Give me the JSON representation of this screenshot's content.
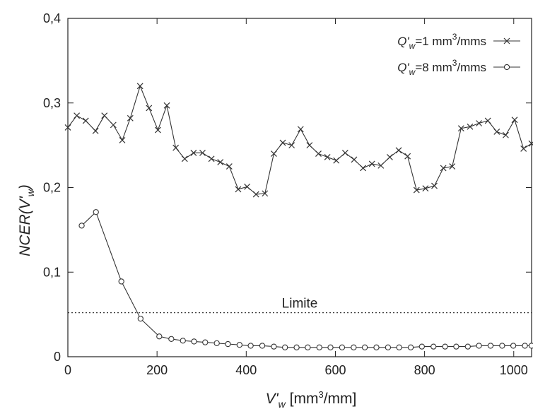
{
  "chart_data": {
    "type": "line",
    "xlabel": {
      "main": "V'",
      "sub": "w",
      "unit_pre": "  [mm",
      "unit_sup": "3",
      "unit_post": "/mm]"
    },
    "ylabel": {
      "pre": "NCER(V'",
      "sub": "w",
      "post": ")"
    },
    "xlim": [
      0,
      1040
    ],
    "ylim": [
      0,
      0.4
    ],
    "x_ticks": [
      0,
      200,
      400,
      600,
      800,
      1000
    ],
    "x_tick_labels": [
      "0",
      "200",
      "400",
      "600",
      "800",
      "1000"
    ],
    "y_ticks": [
      0,
      0.1,
      0.2,
      0.3,
      0.4
    ],
    "y_tick_labels": [
      "0",
      "0,1",
      "0,2",
      "0,3",
      "0,4"
    ],
    "grid": false,
    "legend_position": "top-right",
    "series": [
      {
        "legend": {
          "pre": "Q'",
          "sub": "w",
          "mid": "=1 mm",
          "sup": "3",
          "post": "/mms"
        },
        "marker": "x",
        "color": "#333333",
        "x": [
          0,
          20,
          40,
          62,
          82,
          102,
          122,
          140,
          162,
          182,
          202,
          222,
          242,
          262,
          282,
          302,
          322,
          342,
          362,
          382,
          402,
          422,
          442,
          462,
          482,
          502,
          522,
          542,
          562,
          582,
          602,
          622,
          642,
          662,
          682,
          702,
          722,
          742,
          762,
          782,
          802,
          822,
          842,
          862,
          882,
          902,
          922,
          942,
          962,
          982,
          1002,
          1022,
          1040
        ],
        "y": [
          0.271,
          0.285,
          0.279,
          0.267,
          0.285,
          0.274,
          0.256,
          0.282,
          0.32,
          0.294,
          0.268,
          0.297,
          0.247,
          0.234,
          0.241,
          0.241,
          0.234,
          0.23,
          0.225,
          0.198,
          0.201,
          0.192,
          0.193,
          0.24,
          0.253,
          0.25,
          0.269,
          0.25,
          0.24,
          0.236,
          0.232,
          0.241,
          0.233,
          0.223,
          0.228,
          0.226,
          0.236,
          0.244,
          0.237,
          0.197,
          0.199,
          0.202,
          0.223,
          0.225,
          0.27,
          0.272,
          0.276,
          0.279,
          0.266,
          0.262,
          0.28,
          0.246,
          0.252
        ]
      },
      {
        "legend": {
          "pre": "Q'",
          "sub": "w",
          "mid": "=8 mm",
          "sup": "3",
          "post": "/mms"
        },
        "marker": "circle",
        "color": "#333333",
        "x": [
          31,
          63,
          120,
          163,
          205,
          232,
          258,
          283,
          308,
          334,
          359,
          385,
          410,
          436,
          462,
          487,
          513,
          538,
          564,
          589,
          615,
          641,
          666,
          692,
          718,
          743,
          769,
          794,
          820,
          846,
          871,
          897,
          922,
          948,
          974,
          999,
          1025,
          1040
        ],
        "y": [
          0.155,
          0.171,
          0.089,
          0.045,
          0.024,
          0.021,
          0.019,
          0.018,
          0.017,
          0.016,
          0.015,
          0.014,
          0.013,
          0.013,
          0.012,
          0.011,
          0.011,
          0.011,
          0.011,
          0.011,
          0.011,
          0.011,
          0.011,
          0.011,
          0.011,
          0.011,
          0.011,
          0.012,
          0.012,
          0.012,
          0.012,
          0.012,
          0.013,
          0.013,
          0.013,
          0.013,
          0.013,
          0.013
        ]
      }
    ],
    "reference_line": {
      "y": 0.052,
      "label": "Limite",
      "style": "dotted"
    }
  }
}
